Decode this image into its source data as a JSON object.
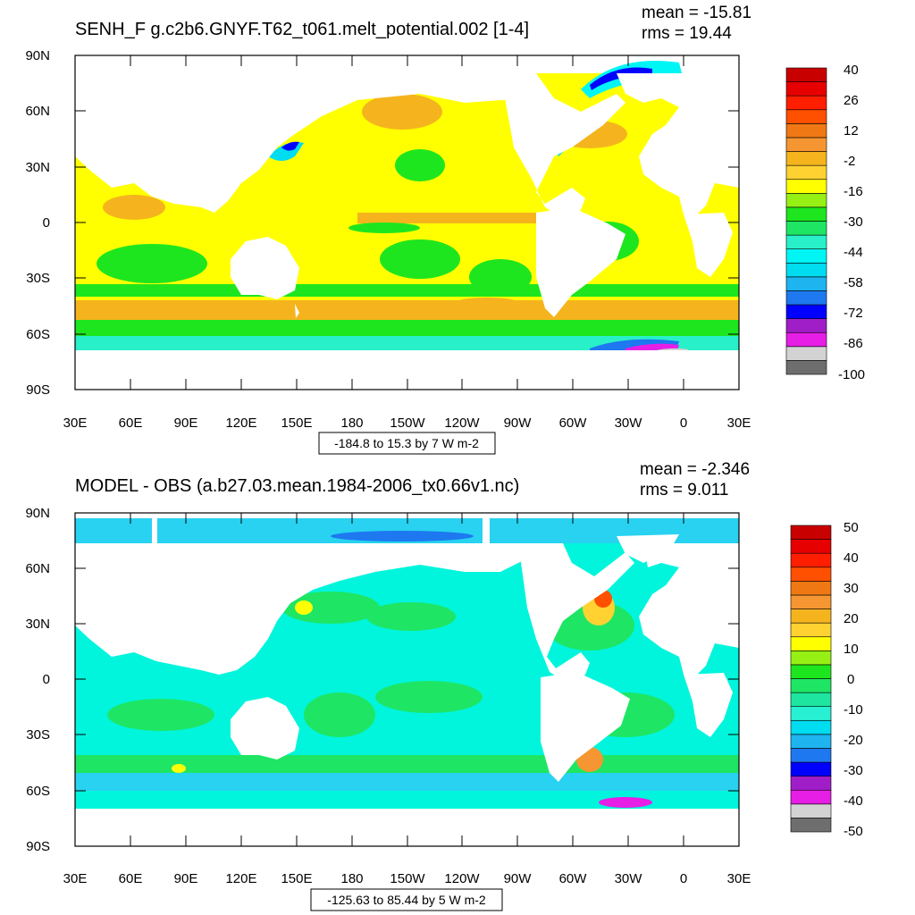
{
  "panels": [
    {
      "title": "SENH_F g.c2b6.GNYF.T62_t061.melt_potential.002 [1-4]",
      "mean_text": "mean = -15.81",
      "rms_text": "rms = 19.44",
      "contour_info": "-184.8 to 15.3 by 7 W m-2",
      "lat_labels": [
        "90N",
        "60N",
        "30N",
        "0",
        "30S",
        "60S",
        "90S"
      ],
      "lon_labels": [
        "30E",
        "60E",
        "90E",
        "120E",
        "150E",
        "180",
        "150W",
        "120W",
        "90W",
        "60W",
        "30W",
        "0",
        "30E"
      ],
      "colorbar": {
        "labels": [
          "40",
          "26",
          "12",
          "-2",
          "-16",
          "-30",
          "-44",
          "-58",
          "-72",
          "-86",
          "-100"
        ],
        "colors": [
          "#6e6e6e",
          "#d3d3d3",
          "#e61ee6",
          "#a01ec8",
          "#0000ff",
          "#1e78f0",
          "#1eb4f0",
          "#00dcf0",
          "#00f5f5",
          "#28f0c8",
          "#1ee664",
          "#1ee61e",
          "#96f014",
          "#ffff00",
          "#ffd232",
          "#f5b41e",
          "#f59632",
          "#f07814",
          "#ff5000",
          "#ff1e00",
          "#e60000",
          "#c80000"
        ]
      }
    },
    {
      "title": "MODEL - OBS (a.b27.03.mean.1984-2006_tx0.66v1.nc)",
      "mean_text": "mean = -2.346",
      "rms_text": "rms = 9.011",
      "contour_info": "-125.63 to 85.44 by 5 W m-2",
      "lat_labels": [
        "90N",
        "60N",
        "30N",
        "0",
        "30S",
        "60S",
        "90S"
      ],
      "lon_labels": [
        "30E",
        "60E",
        "90E",
        "120E",
        "150E",
        "180",
        "150W",
        "120W",
        "90W",
        "60W",
        "30W",
        "0",
        "30E"
      ],
      "colorbar": {
        "labels": [
          "50",
          "40",
          "30",
          "20",
          "10",
          "0",
          "-10",
          "-20",
          "-30",
          "-40",
          "-50"
        ],
        "colors": [
          "#6e6e6e",
          "#d3d3d3",
          "#e61ee6",
          "#a01ec8",
          "#0000ff",
          "#1e78f0",
          "#1eb4f0",
          "#00dcf0",
          "#28f0d2",
          "#1ee6a0",
          "#1ee664",
          "#1ee61e",
          "#96f014",
          "#ffff00",
          "#ffd232",
          "#f5b41e",
          "#f59632",
          "#f07814",
          "#ff5000",
          "#ff1e00",
          "#e60000",
          "#c80000"
        ]
      }
    }
  ]
}
